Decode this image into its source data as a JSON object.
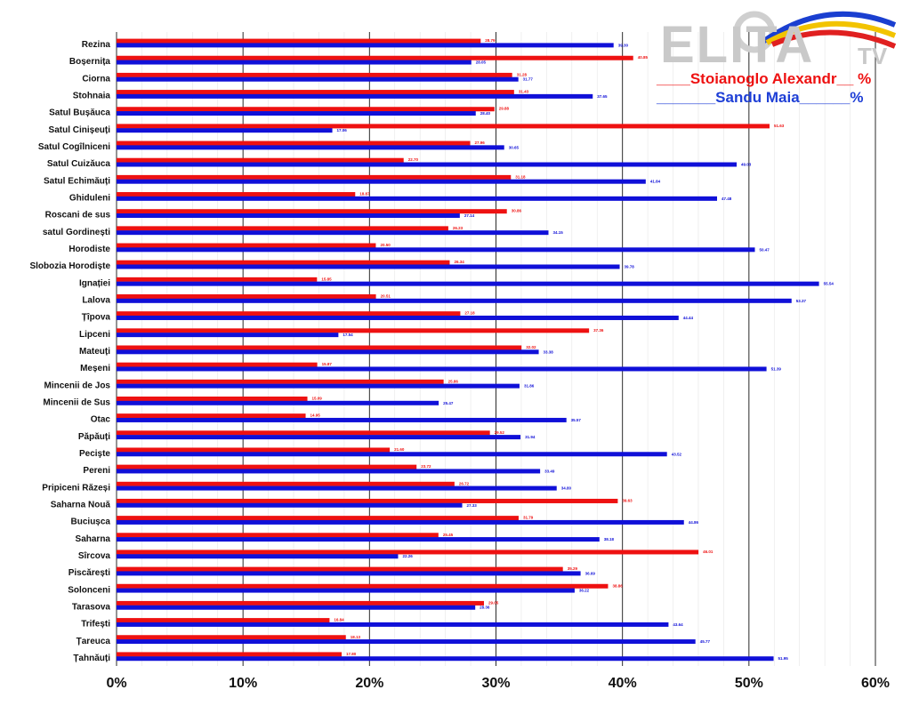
{
  "legend": {
    "series1": "____Stoianoglo Alexandr__ %",
    "series2": "_______Sandu Maia______%"
  },
  "logo": {
    "main": "ELITA",
    "suffix": "TV"
  },
  "colors": {
    "series1": "#ee1111",
    "series2": "#1010d8",
    "grid": "#2a2a2a"
  },
  "chart_data": {
    "type": "bar",
    "orientation": "horizontal",
    "xlim": [
      0,
      60
    ],
    "xticks": [
      "0%",
      "10%",
      "20%",
      "30%",
      "40%",
      "50%",
      "60%"
    ],
    "grid": "vertical",
    "categories": [
      "Rezina",
      "Boșernița",
      "Ciorna",
      "Stohnaia",
      "Satul Bușăuca",
      "Satul Cinișeuți",
      "Satul Cogîlniceni",
      "Satul Cuizăuca",
      "Satul Echimăuți",
      "Ghiduleni",
      "Roscani de sus",
      "satul Gordinești",
      "Horodiste",
      "Slobozia Horodiște",
      "Ignației",
      "Lalova",
      "Țîpova",
      "Lipceni",
      "Mateuți",
      "Meșeni",
      "Mincenii de Jos",
      "Mincenii de Sus",
      "Otac",
      "Păpăuți",
      "Pecişte",
      "Pereni",
      "Pripiceni Răzeși",
      "Saharna Nouă",
      "Buciușca",
      "Saharna",
      "Sîrcova",
      "Piscărești",
      "Solonceni",
      "Tarasova",
      "Trifești",
      "Țareuca",
      "Țahnăuți"
    ],
    "series": [
      {
        "values": [
          28.79,
          40.85,
          31.28,
          31.43,
          29.88,
          51.63,
          27.96,
          22.7,
          31.18,
          18.87,
          30.86,
          26.23,
          20.5,
          26.34,
          15.85,
          20.51,
          27.18,
          37.36,
          32.02,
          15.87,
          25.86,
          15.09,
          14.95,
          29.52,
          21.6,
          23.72,
          26.72,
          39.63,
          31.79,
          25.45,
          46.01,
          35.29,
          38.86,
          29.05,
          16.84,
          18.13,
          17.8
        ],
        "labels": [
          "28.79",
          "40.85",
          "31.28",
          "31.43",
          "29.88",
          "51.63",
          "27.96",
          "22.70",
          "31.18",
          "18.87",
          "30.86",
          "26.23",
          "20.50",
          "26.34",
          "15.85",
          "20.51",
          "27.18",
          "37.36",
          "32.02",
          "15.87",
          "25.86",
          "15.09",
          "14.95",
          "29.52",
          "21.60",
          "23.72",
          "26.72",
          "39.63",
          "31.79",
          "25.45",
          "46.01",
          "35.29",
          "38.86",
          "29.05",
          "16.84",
          "18.13",
          "17.80"
        ]
      },
      {
        "values": [
          39.3,
          28.05,
          31.77,
          37.65,
          28.4,
          17.06,
          30.65,
          49.03,
          41.84,
          47.48,
          27.14,
          34.15,
          50.47,
          39.78,
          55.54,
          53.37,
          44.44,
          17.54,
          33.38,
          51.39,
          31.86,
          25.47,
          35.57,
          31.94,
          43.52,
          33.49,
          34.8,
          27.33,
          44.86,
          38.18,
          22.26,
          36.69,
          36.22,
          28.36,
          43.64,
          45.77,
          51.95
        ],
        "labels": [
          "39.30",
          "28.05",
          "31.77",
          "37.65",
          "28.40",
          "17.06",
          "30.65",
          "49.03",
          "41.84",
          "47.48",
          "27.14",
          "34.15",
          "50.47",
          "39.78",
          "55.54",
          "53.37",
          "44.44",
          "17.54",
          "33.38",
          "51.39",
          "31.86",
          "25.47",
          "35.57",
          "31.94",
          "43.52",
          "33.49",
          "34.80",
          "27.33",
          "44.86",
          "38.18",
          "22.26",
          "36.69",
          "36.22",
          "28.36",
          "43.64",
          "45.77",
          "51.95"
        ]
      }
    ]
  }
}
